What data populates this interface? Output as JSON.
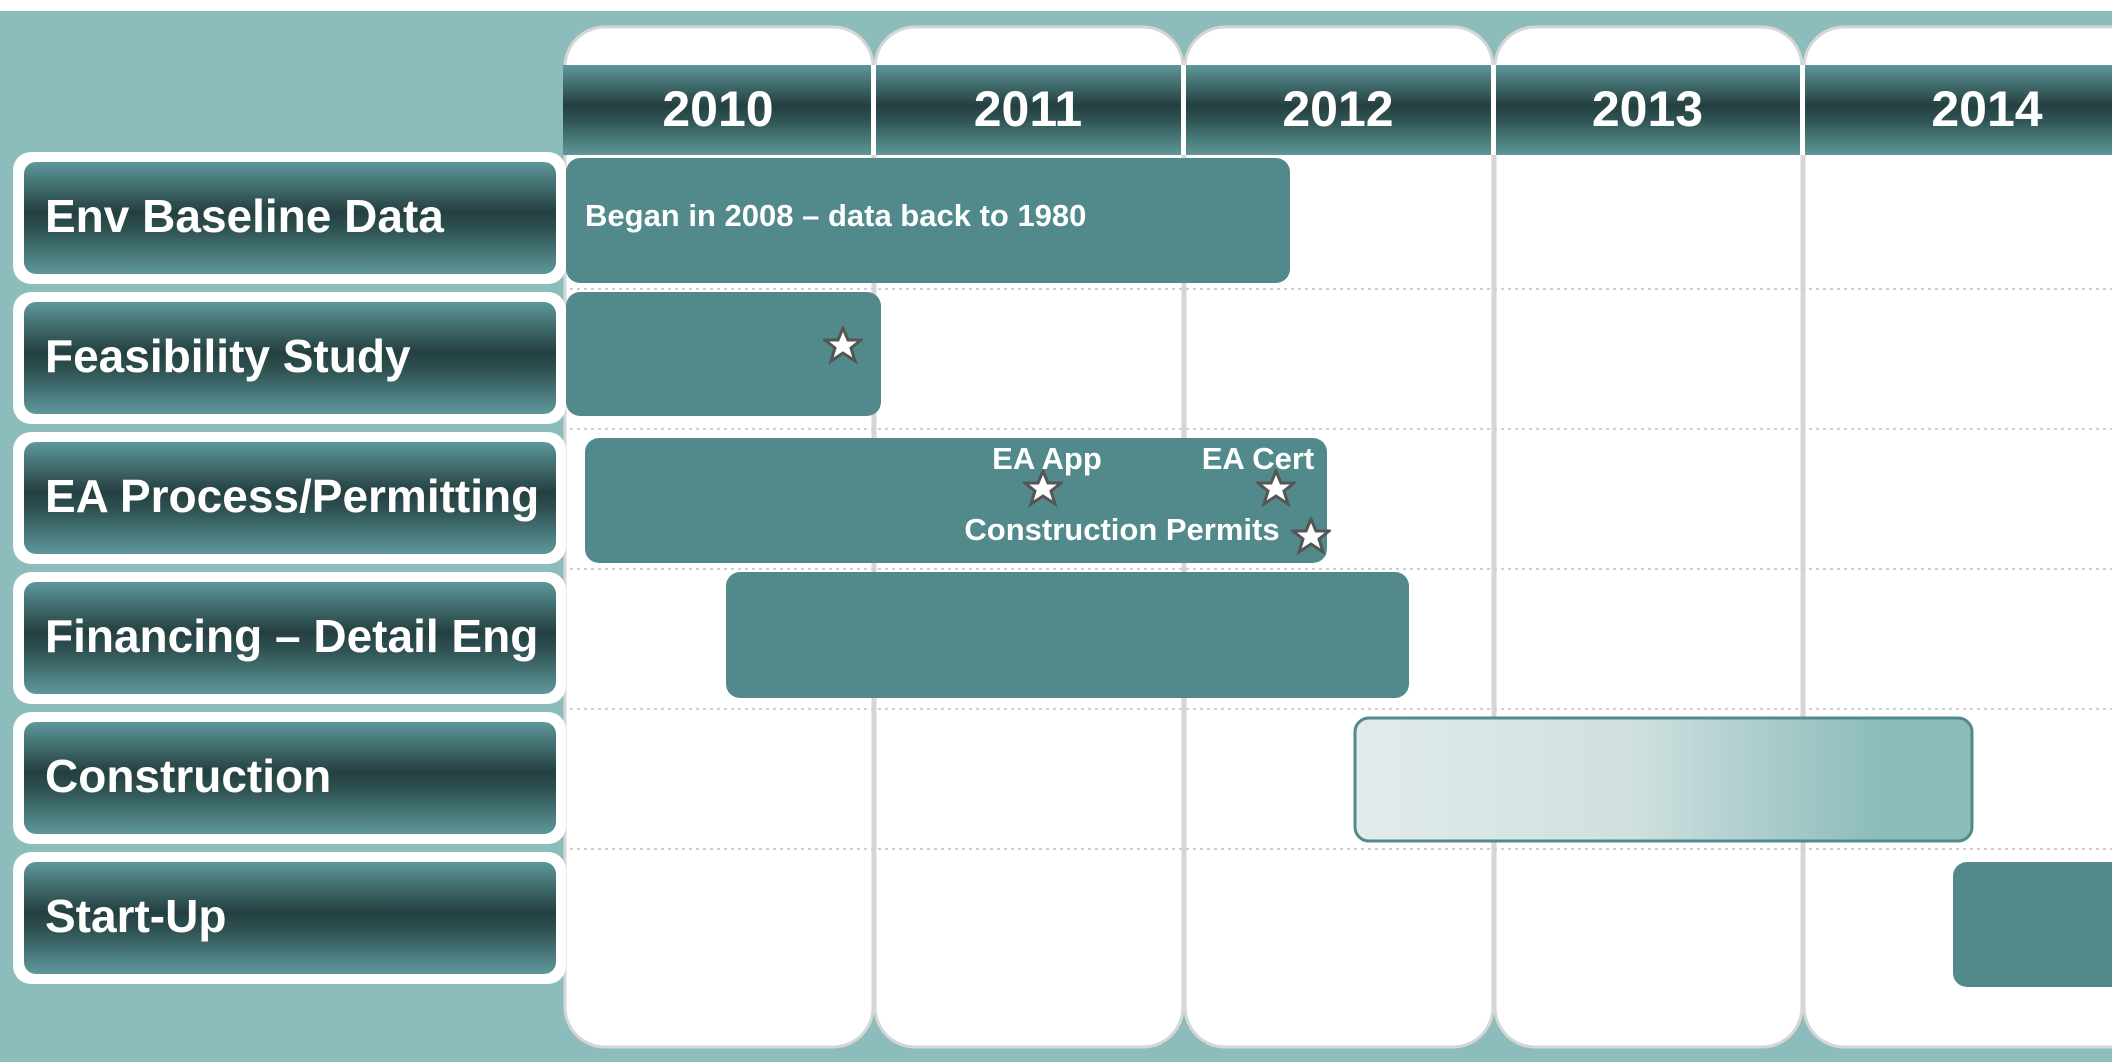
{
  "timeline": {
    "years": [
      "2010",
      "2011",
      "2012",
      "2013",
      "2014"
    ],
    "rows": [
      {
        "label": "Env Baseline Data",
        "note": "Began in 2008 – data back to 1980"
      },
      {
        "label": "Feasibility Study"
      },
      {
        "label": "EA Process/Permitting"
      },
      {
        "label": "Financing – Detail Eng"
      },
      {
        "label": "Construction"
      },
      {
        "label": "Start-Up"
      }
    ],
    "milestones": [
      "EA App",
      "EA Cert",
      "Construction Permits"
    ]
  }
}
